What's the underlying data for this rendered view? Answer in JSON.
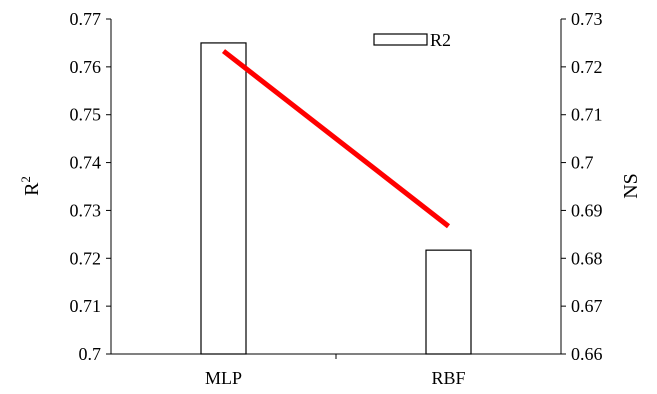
{
  "chart_data": {
    "type": "bar",
    "categories": [
      "MLP",
      "RBF"
    ],
    "series": [
      {
        "name": "R2",
        "type": "bar",
        "axis": "left",
        "values": [
          0.765,
          0.7217
        ],
        "fill": "#ffffff",
        "stroke": "#000000"
      },
      {
        "type": "line",
        "axis": "right",
        "values": [
          0.7233,
          0.6867
        ],
        "color": "#ff0000"
      }
    ],
    "ylabel_left": "R",
    "ylabel_left_sup": "2",
    "ylabel_right": "NS",
    "ylim_left": [
      0.7,
      0.77
    ],
    "ylim_right": [
      0.66,
      0.73
    ],
    "yticks_left": [
      "0.7",
      "0.71",
      "0.72",
      "0.73",
      "0.74",
      "0.75",
      "0.76",
      "0.77"
    ],
    "yticks_right": [
      "0.66",
      "0.67",
      "0.68",
      "0.69",
      "0.7",
      "0.71",
      "0.72",
      "0.73"
    ],
    "legend": {
      "label": "R2",
      "placement": "top-right"
    },
    "grid": false
  }
}
